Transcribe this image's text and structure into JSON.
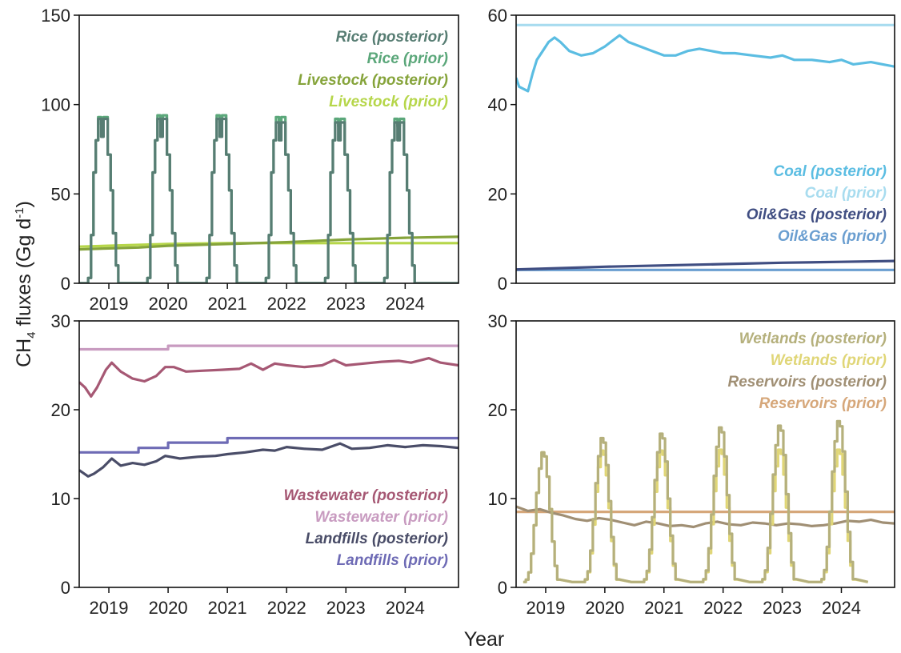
{
  "figure": {
    "ylabel": {
      "pre": "CH",
      "sub": "4",
      "mid": " fluxes (Gg d",
      "sup": "-1",
      "post": ")"
    },
    "xlabel": "Year"
  },
  "chart_data": [
    {
      "type": "line",
      "ylim": [
        0,
        150
      ],
      "yticks": [
        0,
        50,
        100,
        150
      ],
      "xlim": [
        2018.5,
        2024.9
      ],
      "xticks": [
        2019,
        2020,
        2021,
        2022,
        2023,
        2024
      ],
      "legend_position": "top-right",
      "grid": false,
      "series": [
        {
          "name": "Rice (posterior)",
          "color": "#577d73",
          "kind": "rice_post"
        },
        {
          "name": "Rice (prior)",
          "color": "#5ba77a",
          "kind": "rice_prior"
        },
        {
          "name": "Livestock (posterior)",
          "color": "#86a43b",
          "kind": "line",
          "values": [
            [
              2018.5,
              19
            ],
            [
              2019,
              19.5
            ],
            [
              2019.5,
              20
            ],
            [
              2020,
              21
            ],
            [
              2021,
              22
            ],
            [
              2022,
              23
            ],
            [
              2023,
              24.5
            ],
            [
              2024,
              25.5
            ],
            [
              2024.9,
              26
            ]
          ]
        },
        {
          "name": "Livestock (prior)",
          "color": "#b6d64a",
          "kind": "line",
          "values": [
            [
              2018.5,
              20.5
            ],
            [
              2020,
              22
            ],
            [
              2021,
              22.5
            ],
            [
              2022,
              22.5
            ],
            [
              2023,
              22.5
            ],
            [
              2024.9,
              22.5
            ]
          ]
        }
      ]
    },
    {
      "type": "line",
      "ylim": [
        0,
        60
      ],
      "yticks": [
        0,
        20,
        40,
        60
      ],
      "xlim": [
        2018.5,
        2024.9
      ],
      "xticks": [],
      "legend_position": "middle-right",
      "grid": false,
      "series": [
        {
          "name": "Coal (posterior)",
          "color": "#5bbde2",
          "kind": "line",
          "values": [
            [
              2018.5,
              46
            ],
            [
              2018.55,
              44
            ],
            [
              2018.7,
              43
            ],
            [
              2018.78,
              47
            ],
            [
              2018.85,
              50
            ],
            [
              2018.95,
              52
            ],
            [
              2019.05,
              54
            ],
            [
              2019.15,
              55
            ],
            [
              2019.25,
              54
            ],
            [
              2019.4,
              52
            ],
            [
              2019.6,
              51
            ],
            [
              2019.8,
              51.5
            ],
            [
              2020.0,
              53
            ],
            [
              2020.1,
              54
            ],
            [
              2020.25,
              55.5
            ],
            [
              2020.4,
              54
            ],
            [
              2020.6,
              53
            ],
            [
              2020.8,
              52
            ],
            [
              2021.0,
              51
            ],
            [
              2021.2,
              51
            ],
            [
              2021.4,
              52
            ],
            [
              2021.6,
              52.5
            ],
            [
              2021.8,
              52
            ],
            [
              2022.0,
              51.5
            ],
            [
              2022.2,
              51.5
            ],
            [
              2022.5,
              51
            ],
            [
              2022.8,
              50.5
            ],
            [
              2023.0,
              51
            ],
            [
              2023.2,
              50
            ],
            [
              2023.5,
              50
            ],
            [
              2023.8,
              49.5
            ],
            [
              2024.0,
              50
            ],
            [
              2024.2,
              49
            ],
            [
              2024.5,
              49.5
            ],
            [
              2024.7,
              49
            ],
            [
              2024.9,
              48.5
            ]
          ]
        },
        {
          "name": "Coal (prior)",
          "color": "#a8dcef",
          "kind": "line",
          "values": [
            [
              2018.5,
              57.8
            ],
            [
              2024.9,
              57.8
            ]
          ]
        },
        {
          "name": "Oil&Gas (posterior)",
          "color": "#404e82",
          "kind": "line",
          "values": [
            [
              2018.5,
              3.1
            ],
            [
              2019,
              3.3
            ],
            [
              2020,
              3.7
            ],
            [
              2021,
              4.0
            ],
            [
              2022,
              4.3
            ],
            [
              2023,
              4.6
            ],
            [
              2024,
              4.8
            ],
            [
              2024.9,
              5.0
            ]
          ]
        },
        {
          "name": "Oil&Gas (prior)",
          "color": "#6a9ed0",
          "kind": "line",
          "values": [
            [
              2018.5,
              3.0
            ],
            [
              2024.9,
              3.0
            ]
          ]
        }
      ]
    },
    {
      "type": "line",
      "ylim": [
        0,
        30
      ],
      "yticks": [
        0,
        10,
        20,
        30
      ],
      "xlim": [
        2018.5,
        2024.9
      ],
      "xticks": [
        2019,
        2020,
        2021,
        2022,
        2023,
        2024
      ],
      "legend_position": "bottom-right",
      "grid": false,
      "series": [
        {
          "name": "Wastewater (posterior)",
          "color": "#a65874",
          "kind": "line",
          "values": [
            [
              2018.5,
              23.1
            ],
            [
              2018.6,
              22.5
            ],
            [
              2018.7,
              21.5
            ],
            [
              2018.8,
              22.5
            ],
            [
              2018.95,
              24.5
            ],
            [
              2019.05,
              25.3
            ],
            [
              2019.2,
              24.3
            ],
            [
              2019.4,
              23.5
            ],
            [
              2019.6,
              23.2
            ],
            [
              2019.8,
              23.8
            ],
            [
              2019.95,
              24.8
            ],
            [
              2020.1,
              24.8
            ],
            [
              2020.3,
              24.3
            ],
            [
              2020.6,
              24.4
            ],
            [
              2020.9,
              24.5
            ],
            [
              2021.2,
              24.6
            ],
            [
              2021.4,
              25.2
            ],
            [
              2021.6,
              24.5
            ],
            [
              2021.8,
              25.2
            ],
            [
              2022.0,
              25.0
            ],
            [
              2022.3,
              24.8
            ],
            [
              2022.6,
              25.0
            ],
            [
              2022.8,
              25.6
            ],
            [
              2023.0,
              25.0
            ],
            [
              2023.3,
              25.2
            ],
            [
              2023.6,
              25.4
            ],
            [
              2023.9,
              25.5
            ],
            [
              2024.1,
              25.3
            ],
            [
              2024.4,
              25.8
            ],
            [
              2024.6,
              25.3
            ],
            [
              2024.9,
              25.0
            ]
          ]
        },
        {
          "name": "Wastewater (prior)",
          "color": "#c89bc0",
          "kind": "line",
          "values": [
            [
              2018.5,
              26.8
            ],
            [
              2020.0,
              26.8
            ],
            [
              2020.0,
              27.2
            ],
            [
              2024.9,
              27.2
            ]
          ]
        },
        {
          "name": "Landfills (posterior)",
          "color": "#4a4d68",
          "kind": "line",
          "values": [
            [
              2018.5,
              13.2
            ],
            [
              2018.65,
              12.5
            ],
            [
              2018.75,
              12.8
            ],
            [
              2018.9,
              13.5
            ],
            [
              2019.05,
              14.5
            ],
            [
              2019.2,
              13.7
            ],
            [
              2019.4,
              14.0
            ],
            [
              2019.6,
              13.8
            ],
            [
              2019.8,
              14.2
            ],
            [
              2019.95,
              14.8
            ],
            [
              2020.2,
              14.5
            ],
            [
              2020.5,
              14.7
            ],
            [
              2020.8,
              14.8
            ],
            [
              2021.0,
              15.0
            ],
            [
              2021.3,
              15.2
            ],
            [
              2021.6,
              15.5
            ],
            [
              2021.8,
              15.4
            ],
            [
              2022.0,
              15.8
            ],
            [
              2022.3,
              15.6
            ],
            [
              2022.6,
              15.5
            ],
            [
              2022.9,
              16.2
            ],
            [
              2023.1,
              15.6
            ],
            [
              2023.4,
              15.7
            ],
            [
              2023.7,
              16.0
            ],
            [
              2024.0,
              15.8
            ],
            [
              2024.3,
              16.0
            ],
            [
              2024.6,
              15.9
            ],
            [
              2024.9,
              15.7
            ]
          ]
        },
        {
          "name": "Landfills (prior)",
          "color": "#6e6bb5",
          "kind": "line",
          "values": [
            [
              2018.5,
              15.2
            ],
            [
              2019.5,
              15.2
            ],
            [
              2019.5,
              15.7
            ],
            [
              2020.0,
              15.7
            ],
            [
              2020.0,
              16.3
            ],
            [
              2021.0,
              16.3
            ],
            [
              2021.0,
              16.8
            ],
            [
              2024.9,
              16.8
            ]
          ]
        }
      ]
    },
    {
      "type": "line",
      "ylim": [
        0,
        30
      ],
      "yticks": [
        0,
        10,
        20,
        30
      ],
      "xlim": [
        2018.5,
        2024.9
      ],
      "xticks": [
        2019,
        2020,
        2021,
        2022,
        2023,
        2024
      ],
      "legend_position": "top-right",
      "grid": false,
      "series": [
        {
          "name": "Wetlands (posterior)",
          "color": "#b5b07c",
          "kind": "wet_post",
          "peaks": [
            15.2,
            16.8,
            17.3,
            18.0,
            18.2,
            18.7
          ]
        },
        {
          "name": "Wetlands (prior)",
          "color": "#e0d677",
          "kind": "wet_prior",
          "peaks": [
            15.2,
            15.4,
            15.4,
            15.5,
            15.5,
            15.5
          ]
        },
        {
          "name": "Reservoirs (posterior)",
          "color": "#a08f74",
          "kind": "line",
          "values": [
            [
              2018.5,
              9.1
            ],
            [
              2018.7,
              8.6
            ],
            [
              2018.9,
              8.8
            ],
            [
              2019.1,
              8.4
            ],
            [
              2019.3,
              8.1
            ],
            [
              2019.5,
              7.7
            ],
            [
              2019.7,
              7.5
            ],
            [
              2019.9,
              7.8
            ],
            [
              2020.1,
              7.6
            ],
            [
              2020.3,
              7.3
            ],
            [
              2020.5,
              7.0
            ],
            [
              2020.7,
              7.4
            ],
            [
              2020.9,
              7.2
            ],
            [
              2021.1,
              6.9
            ],
            [
              2021.3,
              7.0
            ],
            [
              2021.5,
              6.8
            ],
            [
              2021.7,
              7.2
            ],
            [
              2021.9,
              7.4
            ],
            [
              2022.1,
              7.1
            ],
            [
              2022.3,
              7.0
            ],
            [
              2022.5,
              7.3
            ],
            [
              2022.7,
              7.2
            ],
            [
              2022.9,
              7.0
            ],
            [
              2023.1,
              7.2
            ],
            [
              2023.3,
              7.1
            ],
            [
              2023.5,
              6.9
            ],
            [
              2023.7,
              7.0
            ],
            [
              2023.9,
              7.2
            ],
            [
              2024.1,
              7.5
            ],
            [
              2024.3,
              7.4
            ],
            [
              2024.5,
              7.6
            ],
            [
              2024.7,
              7.3
            ],
            [
              2024.9,
              7.2
            ]
          ]
        },
        {
          "name": "Reservoirs (prior)",
          "color": "#d6a77a",
          "kind": "line",
          "values": [
            [
              2018.5,
              8.5
            ],
            [
              2024.9,
              8.5
            ]
          ]
        }
      ]
    }
  ]
}
